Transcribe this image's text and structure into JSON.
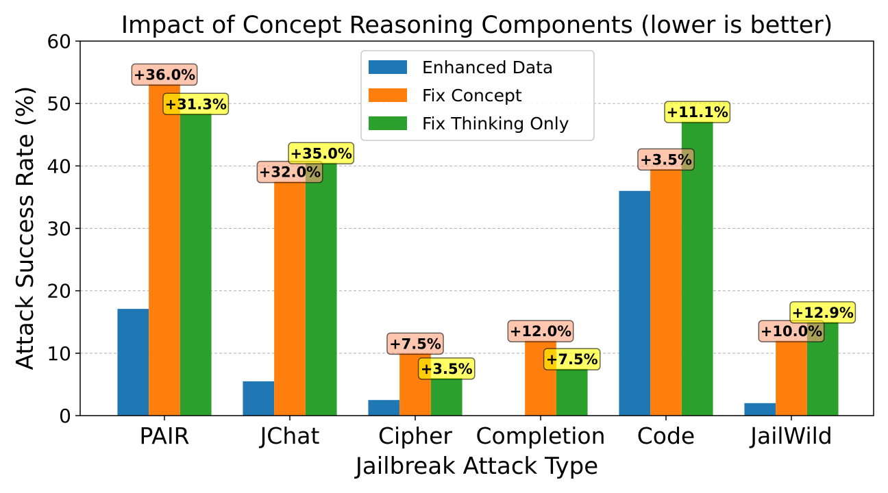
{
  "chart_data": {
    "type": "bar",
    "title": "Impact of Concept Reasoning Components (lower is better)",
    "xlabel": "Jailbreak Attack Type",
    "ylabel": "Attack Success Rate (%)",
    "ylim": [
      0,
      60
    ],
    "yticks": [
      "0",
      "10",
      "20",
      "30",
      "40",
      "50",
      "60"
    ],
    "grid": "y-dashed",
    "legend_position": "top-center",
    "categories": [
      "PAIR",
      "JChat",
      "Cipher",
      "Completion",
      "Code",
      "JailWild"
    ],
    "series": [
      {
        "name": "Enhanced Data",
        "color": "#1f77b4",
        "values": [
          17.1,
          5.5,
          2.5,
          0,
          36.0,
          2.0
        ]
      },
      {
        "name": "Fix Concept",
        "color": "#ff7f0e",
        "values": [
          53.1,
          37.5,
          10.0,
          12.0,
          39.5,
          12.0
        ]
      },
      {
        "name": "Fix Thinking Only",
        "color": "#2ca02c",
        "values": [
          48.4,
          40.5,
          6.0,
          7.5,
          47.1,
          15.0
        ]
      }
    ],
    "annotations": {
      "Fix Concept": {
        "color": "#ffa07a",
        "labels": [
          "+36.0%",
          "+32.0%",
          "+7.5%",
          "+12.0%",
          "+3.5%",
          "+10.0%"
        ]
      },
      "Fix Thinking Only": {
        "color": "#ffff00",
        "labels": [
          "+31.3%",
          "+35.0%",
          "+3.5%",
          "+7.5%",
          "+11.1%",
          "+12.9%"
        ]
      }
    }
  }
}
